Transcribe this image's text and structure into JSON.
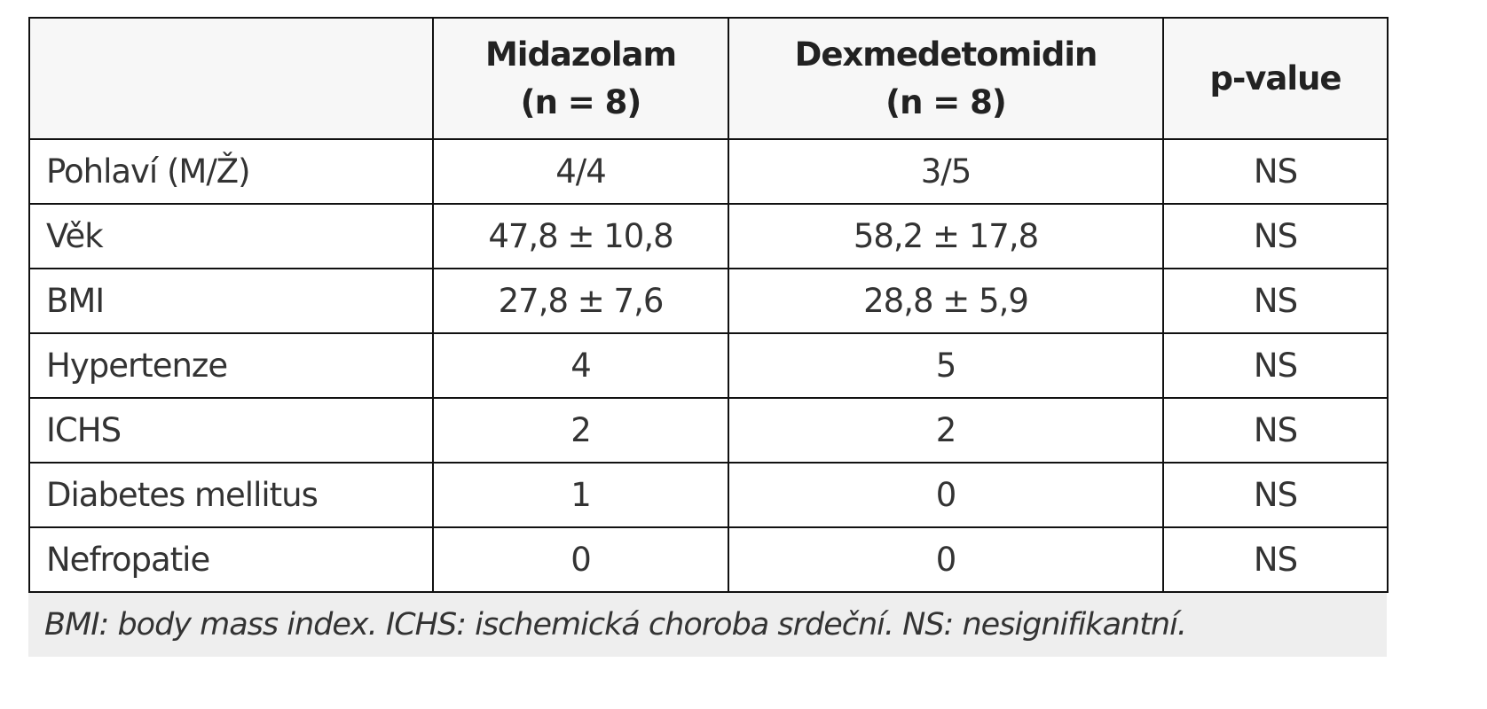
{
  "table": {
    "header": [
      [
        "Midazolam",
        "(n = 8)"
      ],
      [
        "Dexmedetomidin",
        "(n = 8)"
      ],
      [
        "p-value"
      ]
    ],
    "rows": [
      [
        "Pohlaví (M/Ž)",
        "4/4",
        "3/5",
        "NS"
      ],
      [
        "Věk",
        "47,8 ± 10,8",
        "58,2 ± 17,8",
        "NS"
      ],
      [
        "BMI",
        "27,8 ± 7,6",
        "28,8 ± 5,9",
        "NS"
      ],
      [
        "Hypertenze",
        "4",
        "5",
        "NS"
      ],
      [
        "ICHS",
        "2",
        "2",
        "NS"
      ],
      [
        "Diabetes mellitus",
        "1",
        "0",
        "NS"
      ],
      [
        "Nefropatie",
        "0",
        "0",
        "NS"
      ]
    ],
    "footnote": "BMI: body mass index. ICHS: ischemická choroba srdeční. NS: nesignifikantní."
  }
}
